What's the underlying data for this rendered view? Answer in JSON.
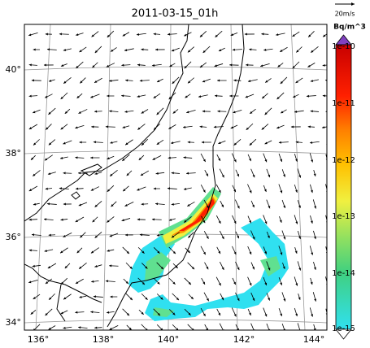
{
  "title": "2011-03-15_01h",
  "scale_label": "20m/s",
  "colorbar": {
    "unit": "Bq/m^3",
    "labels": [
      "1e-10",
      "1e-11",
      "1e-12",
      "1e-13",
      "1e-14",
      "1e-15"
    ]
  },
  "axes": {
    "lat_labels": [
      "40°",
      "38°",
      "36°",
      "34°"
    ],
    "lon_labels": [
      "136°",
      "138°",
      "140°",
      "142°",
      "144°"
    ]
  }
}
